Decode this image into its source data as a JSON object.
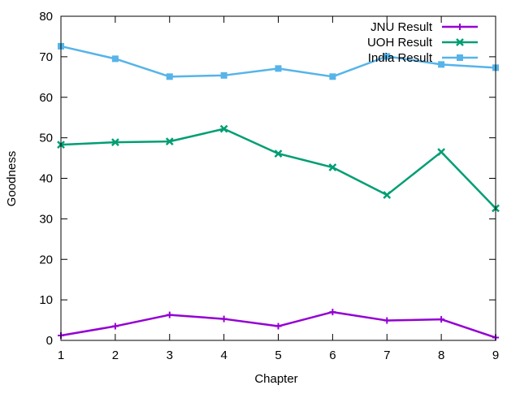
{
  "chart_data": {
    "type": "line",
    "title": "",
    "xlabel": "Chapter",
    "ylabel": "Goodness",
    "xlim": [
      1,
      9
    ],
    "ylim": [
      0,
      80
    ],
    "xticks": [
      1,
      2,
      3,
      4,
      5,
      6,
      7,
      8,
      9
    ],
    "yticks": [
      0,
      10,
      20,
      30,
      40,
      50,
      60,
      70,
      80
    ],
    "grid": false,
    "legend_position": "top-right",
    "x": [
      1,
      2,
      3,
      4,
      5,
      6,
      7,
      8,
      9
    ],
    "series": [
      {
        "name": "JNU Result",
        "color": "#9400d3",
        "marker": "plus",
        "values": [
          1.2,
          3.5,
          6.3,
          5.3,
          3.5,
          7.0,
          4.9,
          5.2,
          0.7
        ]
      },
      {
        "name": "UOH Result",
        "color": "#009e73",
        "marker": "cross",
        "values": [
          48.3,
          48.9,
          49.1,
          52.2,
          46.1,
          42.7,
          35.9,
          46.5,
          32.6
        ]
      },
      {
        "name": "India Result",
        "color": "#56b4e9",
        "marker": "square",
        "values": [
          72.6,
          69.5,
          65.1,
          65.4,
          67.1,
          65.1,
          70.1,
          68.1,
          67.3
        ]
      }
    ]
  }
}
